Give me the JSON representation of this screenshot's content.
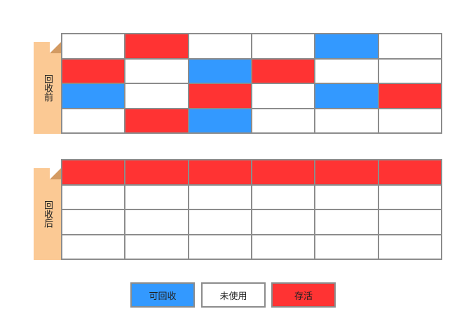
{
  "panels": [
    {
      "label": "回收前",
      "rows": [
        [
          "empty",
          "live",
          "empty",
          "empty",
          "reclaimable",
          "empty"
        ],
        [
          "live",
          "empty",
          "reclaimable",
          "live",
          "empty",
          "empty"
        ],
        [
          "reclaimable",
          "empty",
          "live",
          "empty",
          "reclaimable",
          "live"
        ],
        [
          "empty",
          "live",
          "reclaimable",
          "empty",
          "empty",
          "empty"
        ]
      ]
    },
    {
      "label": "回收后",
      "rows": [
        [
          "live",
          "live",
          "live",
          "live",
          "live",
          "live"
        ],
        [
          "empty",
          "empty",
          "empty",
          "empty",
          "empty",
          "empty"
        ],
        [
          "empty",
          "empty",
          "empty",
          "empty",
          "empty",
          "empty"
        ],
        [
          "empty",
          "empty",
          "empty",
          "empty",
          "empty",
          "empty"
        ]
      ]
    }
  ],
  "legend": {
    "reclaimable": {
      "label": "可回收",
      "color": "#3399ff"
    },
    "empty": {
      "label": "未使用",
      "color": "#ffffff"
    },
    "live": {
      "label": "存活",
      "color": "#ff3333"
    }
  }
}
